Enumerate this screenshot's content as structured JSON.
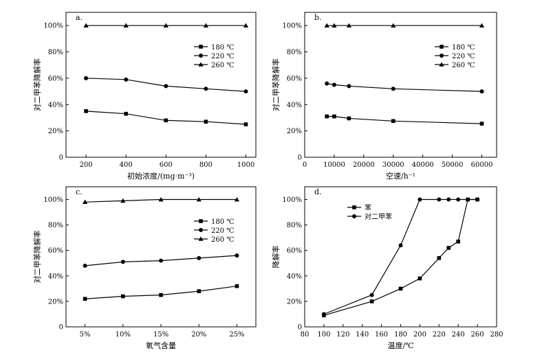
{
  "chart_data": [
    {
      "id": "a",
      "panel_label": "a.",
      "type": "line",
      "xlabel": "初始浓度/(mg·m⁻³)",
      "ylabel": "对二甲苯降解率",
      "xlim": [
        100,
        1050
      ],
      "ylim": [
        0,
        110
      ],
      "xticks": [
        200,
        400,
        600,
        800,
        1000
      ],
      "xtick_labels": [
        "200",
        "400",
        "600",
        "800",
        "1000"
      ],
      "yticks": [
        0,
        20,
        40,
        60,
        80,
        100
      ],
      "ytick_labels": [
        "0",
        "20%",
        "40%",
        "60%",
        "80%",
        "100%"
      ],
      "legend_position": "top-right",
      "series": [
        {
          "name": "180 ℃",
          "marker": "square",
          "x": [
            200,
            400,
            600,
            800,
            1000
          ],
          "y": [
            35,
            33,
            28,
            27,
            25
          ]
        },
        {
          "name": "220 ℃",
          "marker": "circle",
          "x": [
            200,
            400,
            600,
            800,
            1000
          ],
          "y": [
            60,
            59,
            54,
            52,
            50
          ]
        },
        {
          "name": "260 ℃",
          "marker": "triangle",
          "x": [
            200,
            400,
            600,
            800,
            1000
          ],
          "y": [
            100,
            100,
            100,
            100,
            100
          ]
        }
      ]
    },
    {
      "id": "b",
      "panel_label": "b.",
      "type": "line",
      "xlabel": "空速/h⁻¹",
      "ylabel": "对二甲苯降解率",
      "xlim": [
        0,
        65000
      ],
      "ylim": [
        0,
        110
      ],
      "xticks": [
        0,
        10000,
        20000,
        30000,
        40000,
        50000,
        60000
      ],
      "xtick_labels": [
        "0",
        "10000",
        "20000",
        "30000",
        "40000",
        "50000",
        "60000"
      ],
      "yticks": [
        0,
        20,
        40,
        60,
        80,
        100
      ],
      "ytick_labels": [
        "0",
        "20%",
        "40%",
        "60%",
        "80%",
        "100%"
      ],
      "legend_position": "top-right",
      "series": [
        {
          "name": "180 ℃",
          "marker": "square",
          "x": [
            7500,
            10000,
            15000,
            30000,
            60000
          ],
          "y": [
            31,
            31,
            29.5,
            27.5,
            25.5
          ]
        },
        {
          "name": "220 ℃",
          "marker": "circle",
          "x": [
            7500,
            10000,
            15000,
            30000,
            60000
          ],
          "y": [
            56,
            55,
            54,
            52,
            50
          ]
        },
        {
          "name": "260 ℃",
          "marker": "triangle",
          "x": [
            7500,
            10000,
            15000,
            30000,
            60000
          ],
          "y": [
            100,
            100,
            100,
            100,
            100
          ]
        }
      ]
    },
    {
      "id": "c",
      "panel_label": "c.",
      "type": "line",
      "xlabel": "氧气含量",
      "ylabel": "对二甲苯降解率",
      "xlim": [
        2.5,
        27.5
      ],
      "ylim": [
        0,
        110
      ],
      "xticks": [
        5,
        10,
        15,
        20,
        25
      ],
      "xtick_labels": [
        "5%",
        "10%",
        "15%",
        "20%",
        "25%"
      ],
      "yticks": [
        0,
        20,
        40,
        60,
        80,
        100
      ],
      "ytick_labels": [
        "0",
        "20%",
        "40%",
        "60%",
        "80%",
        "100%"
      ],
      "legend_position": "top-right",
      "series": [
        {
          "name": "180 ℃",
          "marker": "square",
          "x": [
            5,
            10,
            15,
            20,
            25
          ],
          "y": [
            22,
            24,
            25,
            28,
            32
          ]
        },
        {
          "name": "220 ℃",
          "marker": "circle",
          "x": [
            5,
            10,
            15,
            20,
            25
          ],
          "y": [
            48,
            51,
            52,
            54,
            56
          ]
        },
        {
          "name": "260 ℃",
          "marker": "triangle",
          "x": [
            5,
            10,
            15,
            20,
            25
          ],
          "y": [
            98,
            99,
            100,
            100,
            100
          ]
        }
      ]
    },
    {
      "id": "d",
      "panel_label": "d.",
      "type": "line",
      "xlabel": "温度/℃",
      "ylabel": "降解率",
      "xlim": [
        80,
        280
      ],
      "ylim": [
        0,
        110
      ],
      "xticks": [
        80,
        100,
        120,
        140,
        160,
        180,
        200,
        220,
        240,
        260,
        280
      ],
      "xtick_labels": [
        "80",
        "100",
        "120",
        "140",
        "160",
        "180",
        "200",
        "220",
        "240",
        "260",
        "280"
      ],
      "yticks": [
        0,
        20,
        40,
        60,
        80,
        100
      ],
      "ytick_labels": [
        "0",
        "20%",
        "40%",
        "60%",
        "80%",
        "100%"
      ],
      "legend_position": "top-left",
      "series": [
        {
          "name": "苯",
          "marker": "square",
          "x": [
            100,
            150,
            180,
            200,
            220,
            230,
            240,
            250,
            260
          ],
          "y": [
            9,
            20,
            30,
            38,
            54,
            62,
            67,
            100,
            100
          ]
        },
        {
          "name": "对二甲苯",
          "marker": "circle",
          "x": [
            100,
            150,
            180,
            200,
            220,
            230,
            240,
            250,
            260
          ],
          "y": [
            10,
            25,
            64,
            100,
            100,
            100,
            100,
            100,
            100
          ]
        }
      ]
    }
  ]
}
